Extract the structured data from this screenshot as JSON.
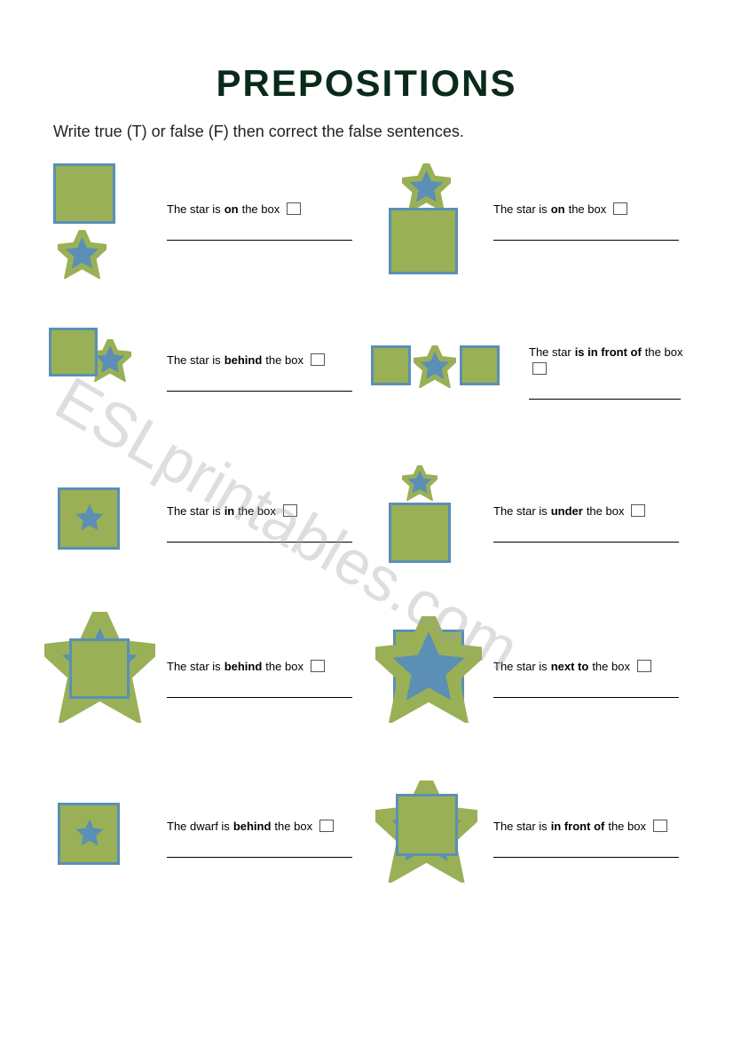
{
  "title": "PREPOSITIONS",
  "instructions": "Write true (T) or false (F) then correct the false sentences.",
  "watermark": "ESLprintables.com",
  "colors": {
    "box_fill": "#99b056",
    "box_border": "#5b8fb5",
    "star_fill": "#5b8fb5",
    "star_outline": "#99b056"
  },
  "items": [
    {
      "pre": "The star is ",
      "bold": "on",
      "post": " the box",
      "layout": "star-below"
    },
    {
      "pre": "The star is ",
      "bold": "on",
      "post": " the box",
      "layout": "star-above"
    },
    {
      "pre": "The star is ",
      "bold": "behind",
      "post": " the box",
      "layout": "star-right-half"
    },
    {
      "pre": "The star ",
      "bold": "is in front of",
      "post": " the box",
      "layout": "box-star-box"
    },
    {
      "pre": "The star is ",
      "bold": "in",
      "post": " the box",
      "layout": "star-inside"
    },
    {
      "pre": "The star is ",
      "bold": "under",
      "post": " the box",
      "layout": "star-above-small"
    },
    {
      "pre": "The star is ",
      "bold": "behind",
      "post": " the box",
      "layout": "big-star-behind"
    },
    {
      "pre": "The star is ",
      "bold": "next to",
      "post": " the box",
      "layout": "big-star-front"
    },
    {
      "pre": "The dwarf is ",
      "bold": "behind",
      "post": " the box",
      "layout": "star-inside"
    },
    {
      "pre": "The star is ",
      "bold": "in front of",
      "post": " the box",
      "layout": "box-on-star"
    }
  ]
}
